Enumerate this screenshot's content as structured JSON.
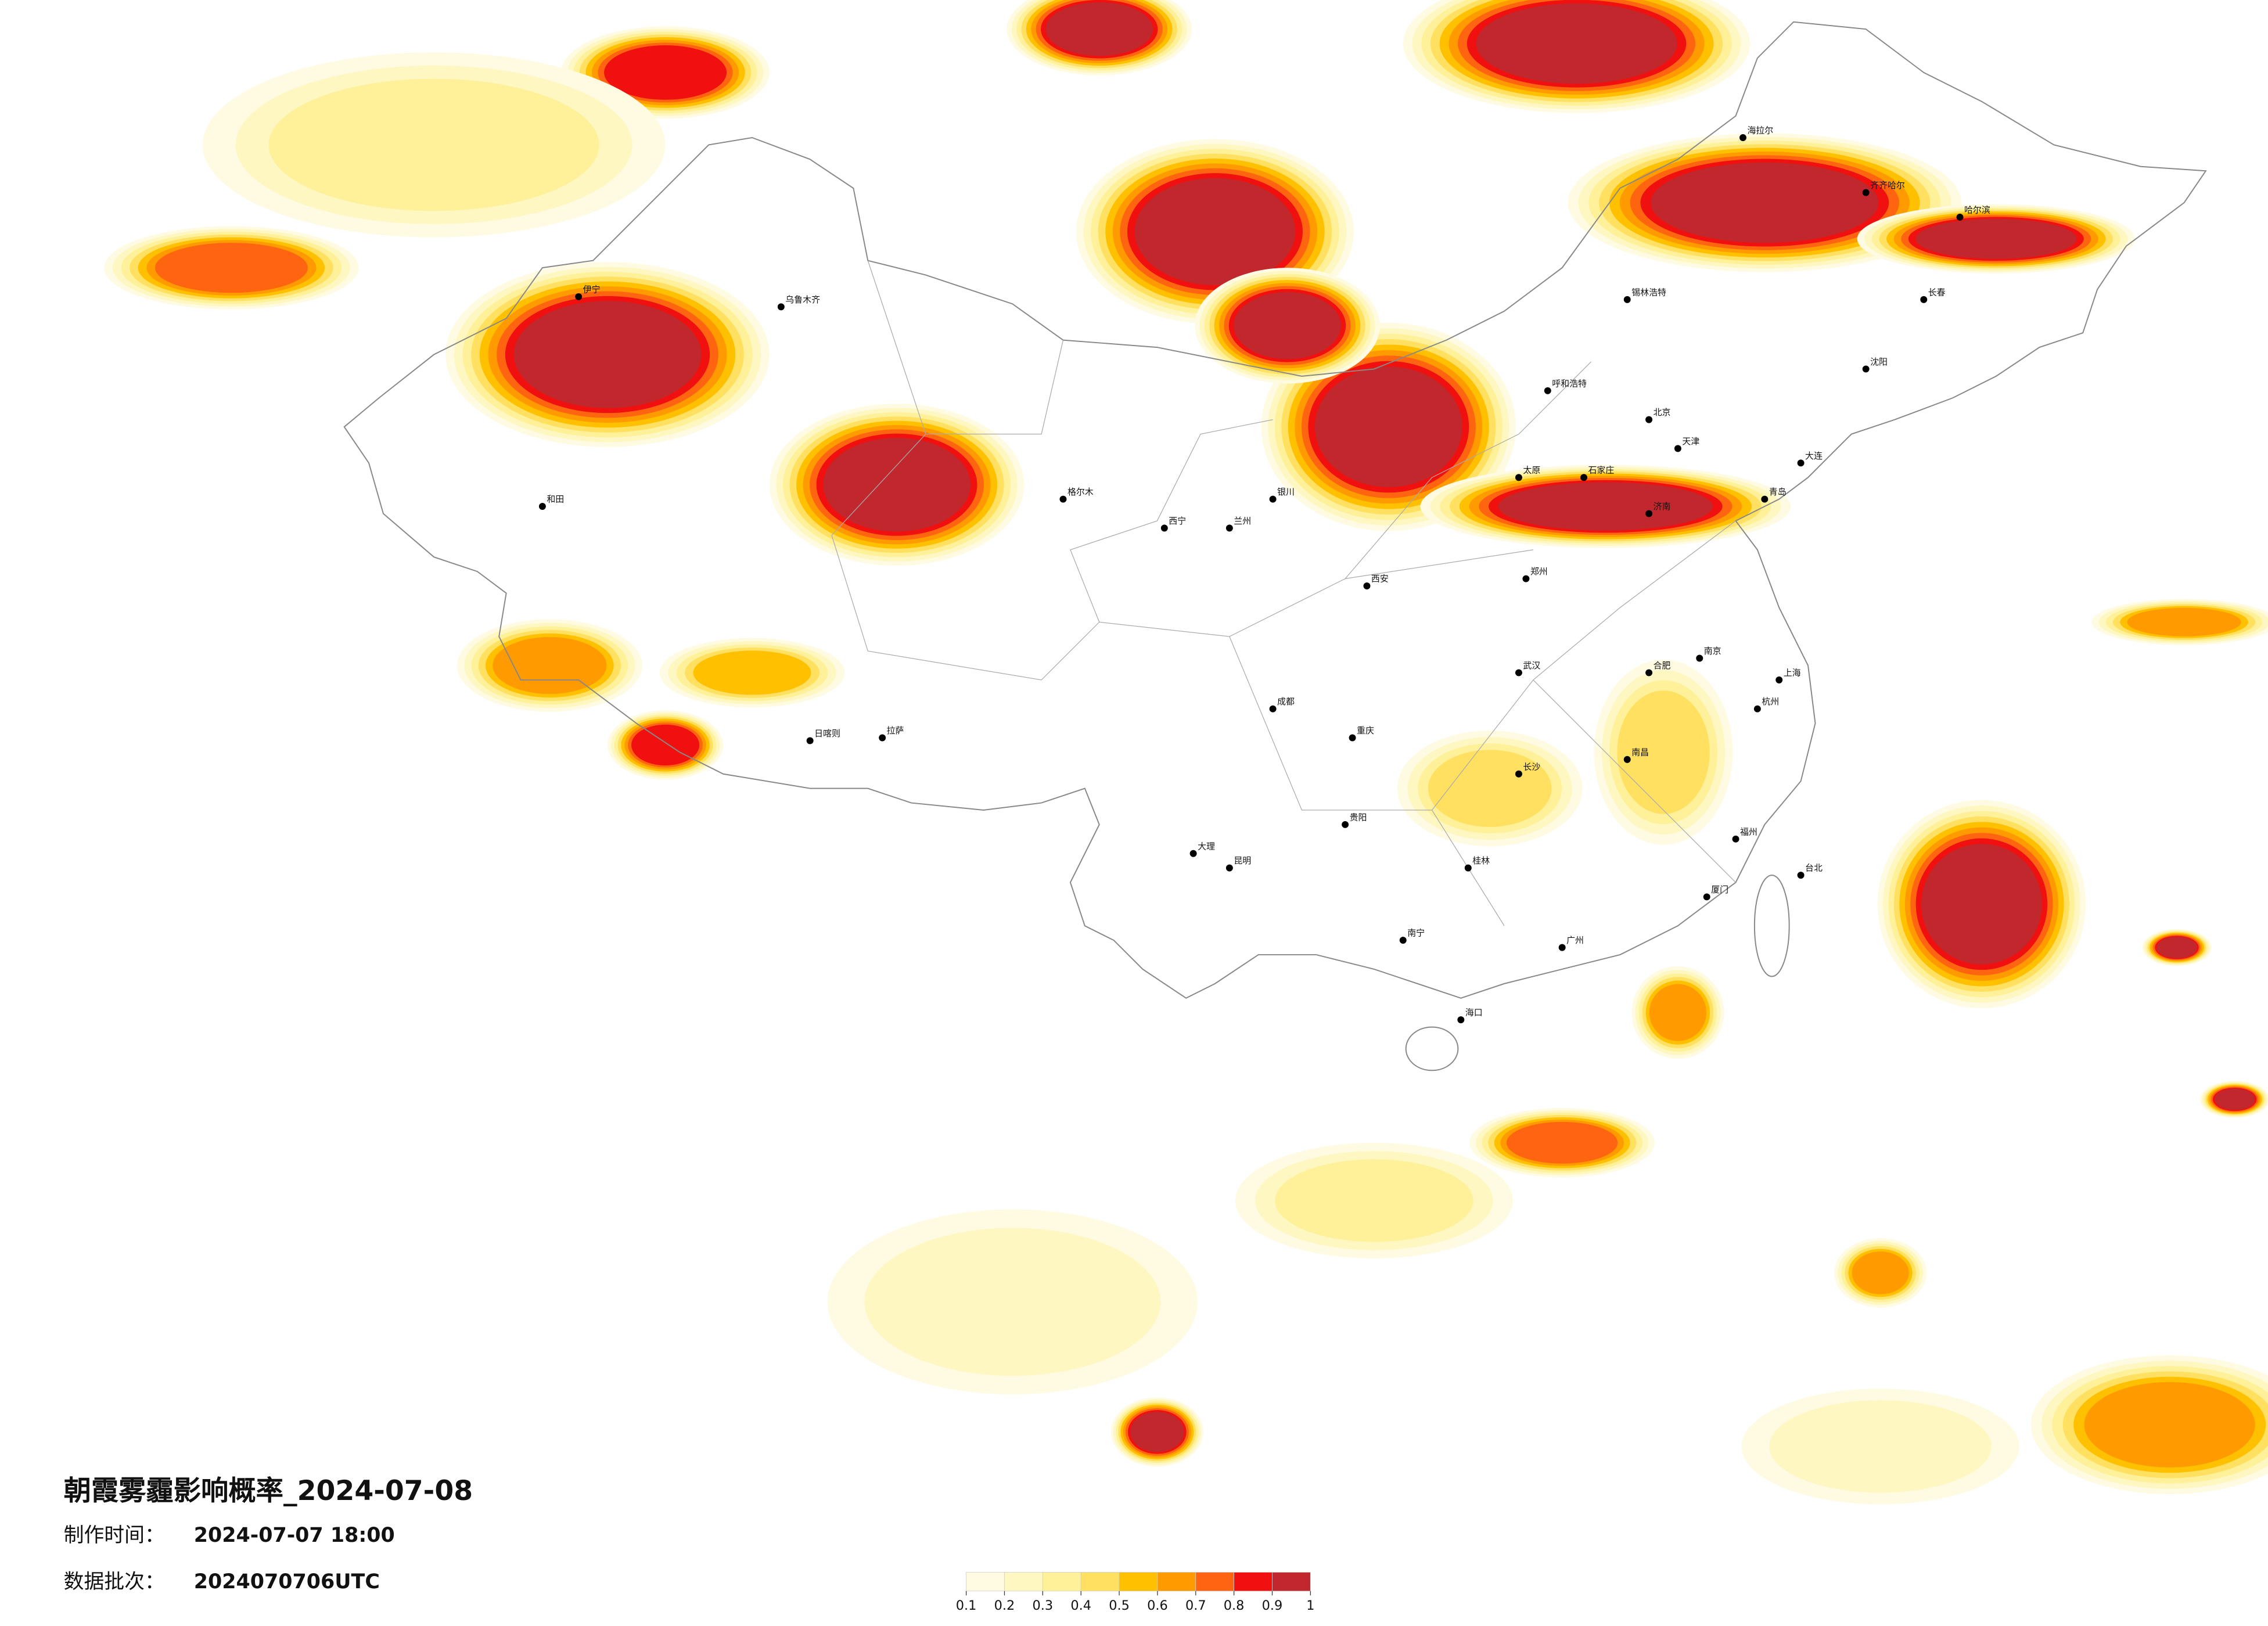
{
  "title": "朝霞雾霾影响概率_2024-07-08",
  "info": {
    "production_label": "制作时间：",
    "production_value": "2024-07-07 18:00",
    "batch_label": "数据批次：",
    "batch_value": "2024070706UTC"
  },
  "legend": {
    "ticks": [
      0.1,
      0.2,
      0.3,
      0.4,
      0.5,
      0.6,
      0.7,
      0.8,
      0.9,
      1
    ],
    "colors": [
      "#fffbe3",
      "#fff7c2",
      "#fff19a",
      "#ffe060",
      "#ffc000",
      "#ff9a00",
      "#ff6410",
      "#f01010",
      "#c0282e"
    ]
  },
  "cities": [
    "北京",
    "天津",
    "上海",
    "广州",
    "重庆",
    "成都",
    "武汉",
    "西安",
    "兰州",
    "乌鲁木齐",
    "拉萨",
    "昆明",
    "哈尔滨",
    "长春",
    "沈阳",
    "呼和浩特",
    "银川",
    "西宁",
    "南宁",
    "贵阳",
    "长沙",
    "南昌",
    "福州",
    "杭州",
    "南京",
    "合肥",
    "郑州",
    "济南",
    "石家庄",
    "太原",
    "海口",
    "台北",
    "和田",
    "格尔木",
    "伊宁",
    "锡林浩特",
    "海拉尔",
    "齐齐哈尔",
    "大连",
    "青岛",
    "厦门",
    "桂林",
    "日喀则",
    "大理"
  ]
}
